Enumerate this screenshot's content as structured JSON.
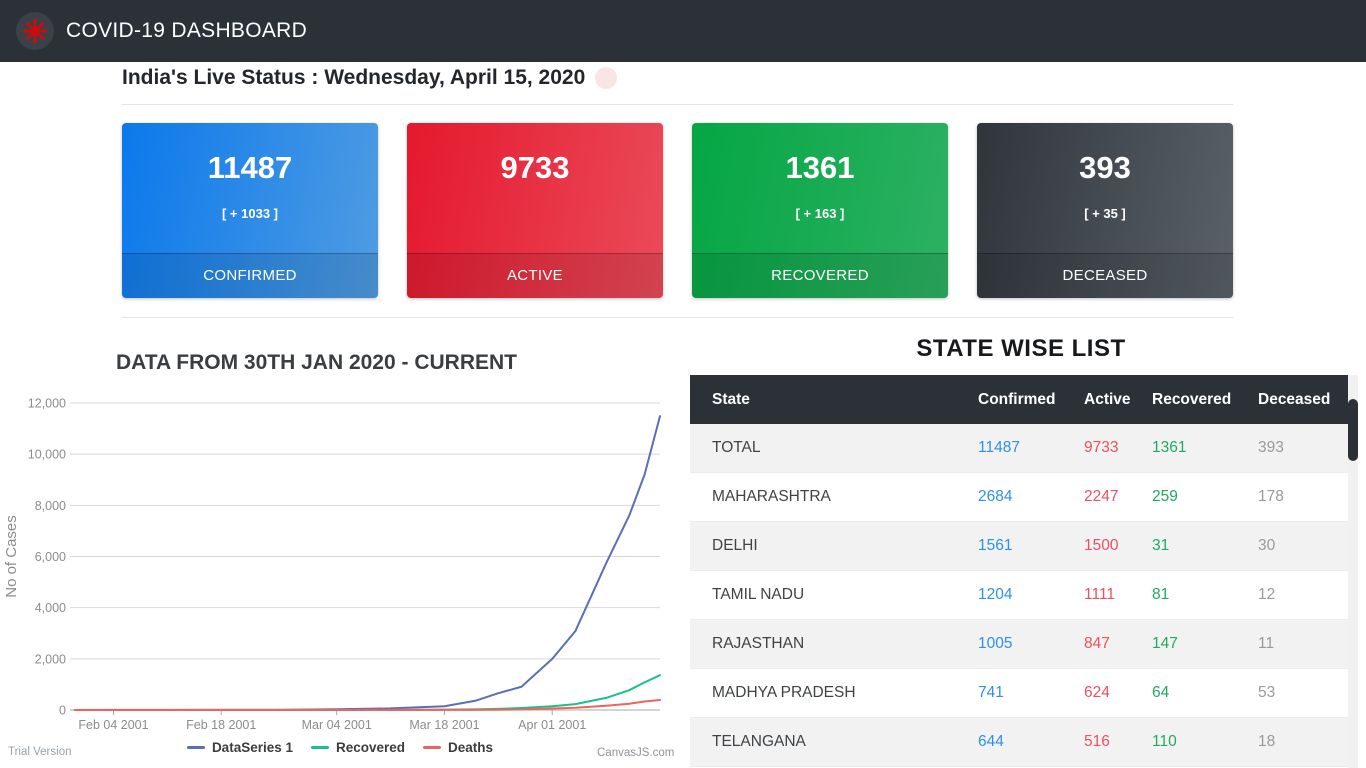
{
  "header": {
    "title": "COVID-19 DASHBOARD"
  },
  "status": {
    "heading": "India's Live Status : Wednesday, April 15, 2020"
  },
  "cards": [
    {
      "value": "11487",
      "delta": "[ + 1033 ]",
      "label": "CONFIRMED",
      "gradient_from": "#0b79ec",
      "gradient_to": "#4f9ce2"
    },
    {
      "value": "9733",
      "delta": "",
      "label": "ACTIVE",
      "gradient_from": "#e5182e",
      "gradient_to": "#ea4b59"
    },
    {
      "value": "1361",
      "delta": "[ + 163 ]",
      "label": "RECOVERED",
      "gradient_from": "#05a644",
      "gradient_to": "#2db163"
    },
    {
      "value": "393",
      "delta": "[ + 35 ]",
      "label": "DECEASED",
      "gradient_from": "#30353c",
      "gradient_to": "#5a6169"
    }
  ],
  "chart": {
    "title": "DATA FROM 30TH JAN 2020 - CURRENT",
    "trial_label": "Trial Version",
    "watermark": "CanvasJS.com"
  },
  "chart_data": {
    "type": "line",
    "title": "DATA FROM 30TH JAN 2020 - CURRENT",
    "xlabel": "",
    "ylabel": "No of Cases",
    "ylim": [
      0,
      12000
    ],
    "y_ticks": [
      0,
      2000,
      4000,
      6000,
      8000,
      10000,
      12000
    ],
    "grid": true,
    "legend_position": "bottom",
    "x_ticks": [
      {
        "day": 5,
        "label": "Feb 04 2001"
      },
      {
        "day": 19,
        "label": "Feb 18 2001"
      },
      {
        "day": 34,
        "label": "Mar 04 2001"
      },
      {
        "day": 48,
        "label": "Mar 18 2001"
      },
      {
        "day": 62,
        "label": "Apr 01 2001"
      }
    ],
    "x_days": [
      0,
      5,
      12,
      19,
      26,
      34,
      41,
      48,
      52,
      55,
      58,
      62,
      65,
      69,
      72,
      74,
      76
    ],
    "series": [
      {
        "name": "DataSeries 1",
        "color": "#5b6fb5",
        "values": [
          1,
          3,
          3,
          3,
          3,
          28,
          62,
          147,
          360,
          657,
          909,
          1998,
          3082,
          5734,
          7598,
          9205,
          11487
        ]
      },
      {
        "name": "Recovered",
        "color": "#17c08e",
        "values": [
          0,
          0,
          0,
          3,
          3,
          3,
          4,
          14,
          24,
          43,
          80,
          148,
          229,
          473,
          774,
          1080,
          1361
        ]
      },
      {
        "name": "Deaths",
        "color": "#f1625f",
        "values": [
          0,
          0,
          0,
          0,
          0,
          0,
          1,
          3,
          7,
          11,
          19,
          58,
          86,
          166,
          246,
          331,
          393
        ]
      }
    ]
  },
  "table": {
    "title": "STATE WISE LIST",
    "columns": [
      "State",
      "Confirmed",
      "Active",
      "Recovered",
      "Deceased"
    ],
    "header_bg": "#2b3137",
    "value_colors": {
      "confirmed": "#2e90ea",
      "active": "#ef4f5f",
      "recovered": "#21a95e",
      "deceased": "#9a9a9a"
    },
    "rows": [
      {
        "state": "TOTAL",
        "confirmed": "11487",
        "active": "9733",
        "recovered": "1361",
        "deceased": "393"
      },
      {
        "state": "MAHARASHTRA",
        "confirmed": "2684",
        "active": "2247",
        "recovered": "259",
        "deceased": "178"
      },
      {
        "state": "DELHI",
        "confirmed": "1561",
        "active": "1500",
        "recovered": "31",
        "deceased": "30"
      },
      {
        "state": "TAMIL NADU",
        "confirmed": "1204",
        "active": "1111",
        "recovered": "81",
        "deceased": "12"
      },
      {
        "state": "RAJASTHAN",
        "confirmed": "1005",
        "active": "847",
        "recovered": "147",
        "deceased": "11"
      },
      {
        "state": "MADHYA PRADESH",
        "confirmed": "741",
        "active": "624",
        "recovered": "64",
        "deceased": "53"
      },
      {
        "state": "TELANGANA",
        "confirmed": "644",
        "active": "516",
        "recovered": "110",
        "deceased": "18"
      }
    ]
  }
}
